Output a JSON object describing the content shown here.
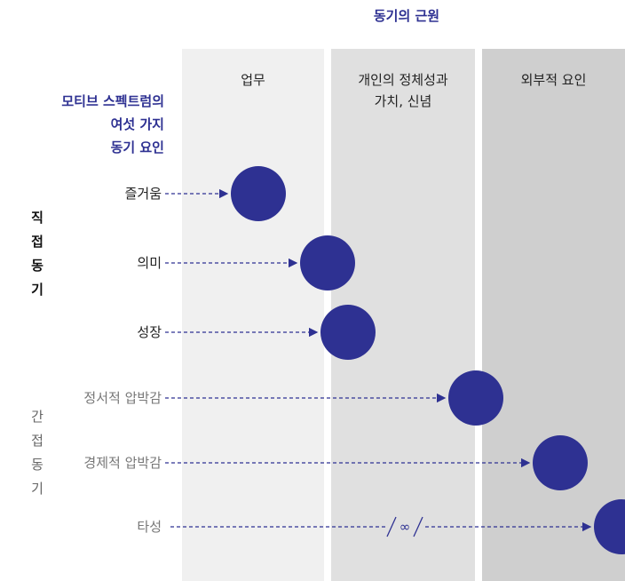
{
  "title": "동기의 근원",
  "columns": [
    [
      "업무"
    ],
    [
      "개인의 정체성과",
      "가치, 신념"
    ],
    [
      "외부적 요인"
    ]
  ],
  "spectrum_title": [
    "모티브 스펙트럼의",
    "여섯 가지",
    "동기 요인"
  ],
  "groups": [
    "직접동기",
    "간접동기"
  ],
  "rows": [
    "즐거움",
    "의미",
    "성장",
    "정서적 압박감",
    "경제적 압박감",
    "타성"
  ],
  "infinity": "∞"
}
